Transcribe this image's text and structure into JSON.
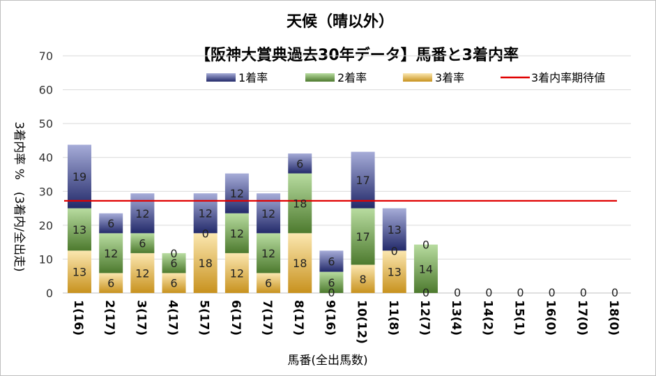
{
  "chart_data": {
    "type": "bar",
    "stacked": true,
    "title": "天候（晴以外）",
    "subtitle": "【阪神大賞典過去30年データ】馬番と3着内率",
    "xlabel": "馬番(全出馬数)",
    "ylabel": "3着内率 %　(3着内/全出走)",
    "ylim": [
      0,
      70
    ],
    "yticks": [
      0,
      10,
      20,
      30,
      40,
      50,
      60,
      70
    ],
    "grid": true,
    "legend_position": "top",
    "categories": [
      "1(16)",
      "2(17)",
      "3(17)",
      "4(17)",
      "5(17)",
      "6(17)",
      "7(17)",
      "8(17)",
      "9(16)",
      "10(12)",
      "11(8)",
      "12(7)",
      "13(4)",
      "14(2)",
      "15(1)",
      "16(0)",
      "17(0)",
      "18(0)"
    ],
    "series": [
      {
        "name": "3着率",
        "color": "#d4a234",
        "values": [
          12.5,
          5.88,
          11.76,
          5.88,
          17.65,
          11.76,
          5.88,
          17.65,
          0,
          8.33,
          12.5,
          0,
          0,
          0,
          0,
          0,
          0,
          0
        ],
        "labels": [
          "13",
          "6",
          "12",
          "6",
          "18",
          "12",
          "6",
          "18",
          "0",
          "8",
          "13",
          "0",
          "0",
          "0",
          "0",
          "0",
          "0",
          "0"
        ]
      },
      {
        "name": "2着率",
        "color": "#5a8a3a",
        "values": [
          12.5,
          11.76,
          5.88,
          5.88,
          0,
          11.76,
          11.76,
          17.65,
          6.25,
          16.67,
          0,
          14.29,
          0,
          0,
          0,
          0,
          0,
          0
        ],
        "labels": [
          "13",
          "12",
          "6",
          "6",
          "0",
          "12",
          "12",
          "18",
          "6",
          "17",
          "0",
          "14",
          "",
          "",
          "",
          "",
          "",
          ""
        ]
      },
      {
        "name": "1着率",
        "color": "#2e3478",
        "values": [
          18.75,
          5.88,
          11.76,
          0,
          11.76,
          11.76,
          11.76,
          5.88,
          6.25,
          16.67,
          12.5,
          0,
          0,
          0,
          0,
          0,
          0,
          0
        ],
        "labels": [
          "19",
          "6",
          "12",
          "0",
          "12",
          "12",
          "12",
          "6",
          "6",
          "17",
          "13",
          "0",
          "",
          "",
          "",
          "",
          "",
          ""
        ]
      }
    ],
    "legend": [
      "1着率",
      "2着率",
      "3着率",
      "3着内率期待値"
    ],
    "reference_line": {
      "name": "3着内率期待値",
      "value": 27.2,
      "color": "#e00000"
    }
  }
}
